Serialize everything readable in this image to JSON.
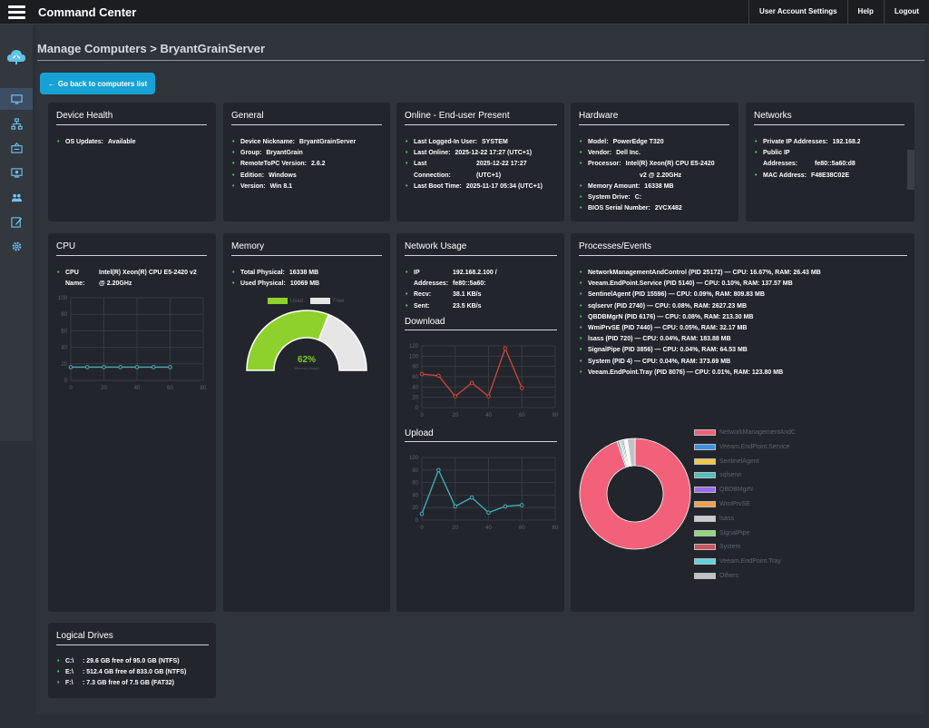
{
  "header": {
    "app_title": "Command Center",
    "links": [
      "User Account Settings",
      "Help",
      "Logout"
    ]
  },
  "sidebar": {
    "icons": [
      "cloud-logo-icon",
      "monitor-icon",
      "network-icon",
      "remote-desktop-icon",
      "screen-icon",
      "users-icon",
      "edit-icon",
      "gear-icon"
    ]
  },
  "page": {
    "title": "Manage Computers > BryantGrainServer",
    "back_button": "Go back to computers list"
  },
  "device_health": {
    "title": "Device Health",
    "rows": [
      {
        "k": "OS Updates:",
        "v": "Available"
      }
    ]
  },
  "general": {
    "title": "General",
    "rows": [
      {
        "k": "Device Nickname:",
        "v": "BryantGrainServer"
      },
      {
        "k": "Group:",
        "v": "BryantGrain"
      },
      {
        "k": "RemoteToPC Version:",
        "v": "2.6.2"
      },
      {
        "k": "Edition:",
        "v": "Windows"
      },
      {
        "k": "Version:",
        "v": "Win 8.1"
      }
    ]
  },
  "online": {
    "title": "Online - End-user Present",
    "rows": [
      {
        "k": "Last Logged-In User:",
        "v": "SYSTEM"
      },
      {
        "k": "Last Online:",
        "v": "2025-12-22 17:27 (UTC+1)"
      },
      {
        "k": "Last",
        "v": "2025-12-22 17:27"
      },
      {
        "k": "Connection:",
        "v": "(UTC+1)"
      },
      {
        "k": "Last Boot Time:",
        "v": "2025-11-17 05:34 (UTC+1)"
      }
    ]
  },
  "hardware": {
    "title": "Hardware",
    "rows": [
      {
        "k": "Model:",
        "v": "PowerEdge T320"
      },
      {
        "k": "Vendor:",
        "v": "Dell Inc."
      },
      {
        "k": "Processor:",
        "v": "Intel(R) Xeon(R) CPU E5-2420"
      },
      {
        "k": "",
        "v": "v2 @ 2.20GHz"
      },
      {
        "k": "Memory Amount:",
        "v": "16338 MB"
      },
      {
        "k": "System Drive:",
        "v": "C:"
      },
      {
        "k": "BIOS Serial Number:",
        "v": "2VCX482"
      }
    ]
  },
  "networks": {
    "title": "Networks",
    "rows": [
      {
        "k": "Private IP Addresses:",
        "v": "192.168.2.100"
      },
      {
        "k": "Public IP",
        "v": ""
      },
      {
        "k": "Addresses:",
        "v": "fe80::5a60:d8"
      },
      {
        "k": "MAC Address:",
        "v": "F48E38C02E"
      }
    ]
  },
  "cpu": {
    "title": "CPU",
    "row1_k": "CPU",
    "row1_v": "Intel(R) Xeon(R) CPU E5-2420 v2",
    "row2_k": "Name:",
    "row2_v": "@ 2.20GHz"
  },
  "memory": {
    "title": "Memory",
    "rows": [
      {
        "k": "Total Physical:",
        "v": "16338 MB"
      },
      {
        "k": "Used Physical:",
        "v": "10069 MB"
      }
    ],
    "legend_used": "Used",
    "legend_free": "Free",
    "gauge_percent": "62%",
    "gauge_label": "Memory Usage",
    "used_fraction": 0.62
  },
  "network_usage": {
    "title": "Network Usage",
    "rows": [
      {
        "k": "IP",
        "v": "192.168.2.100 /"
      },
      {
        "k": "Addresses:",
        "v": "fe80::5a60:"
      },
      {
        "k": "Recv:",
        "v": "38.1  KB/s"
      },
      {
        "k": "Sent:",
        "v": "23.5  KB/s"
      }
    ],
    "download_title": "Download",
    "upload_title": "Upload"
  },
  "processes": {
    "title": "Processes/Events",
    "rows": [
      "NetworkManagementAndControl  (PID 25172) — CPU: 16.67%, RAM: 26.43 MB",
      "Veeam.EndPoint.Service  (PID 5140) — CPU: 0.10%, RAM: 137.57 MB",
      "SentinelAgent  (PID 15596) — CPU: 0.09%, RAM: 809.83 MB",
      "sqlservr  (PID 2740) — CPU: 0.08%, RAM: 2627.23 MB",
      "QBDBMgrN  (PID 6176) — CPU: 0.08%, RAM: 213.30 MB",
      "WmiPrvSE  (PID 7440) — CPU: 0.05%, RAM: 32.17 MB",
      "lsass  (PID 720) — CPU: 0.04%, RAM: 183.88 MB",
      "SignalPipe  (PID 3856) — CPU: 0.04%, RAM: 64.53 MB",
      "System  (PID 4) — CPU: 0.04%, RAM: 373.69 MB",
      "Veeam.EndPoint.Tray  (PID 8076) — CPU: 0.01%, RAM: 123.80 MB"
    ],
    "legend": [
      {
        "label": "NetworkManagementAndC",
        "color": "#f2607a"
      },
      {
        "label": "Veeam.EndPoint.Service",
        "color": "#3d8fdc"
      },
      {
        "label": "SentinelAgent",
        "color": "#f0c64a"
      },
      {
        "label": "sqlservr",
        "color": "#4fc0c0"
      },
      {
        "label": "QBDBMgrN",
        "color": "#9b6cf0"
      },
      {
        "label": "WmiPrvSE",
        "color": "#f2a04a"
      },
      {
        "label": "lsass",
        "color": "#c8cbcf"
      },
      {
        "label": "SignalPipe",
        "color": "#8fd67a"
      },
      {
        "label": "System",
        "color": "#c7545f"
      },
      {
        "label": "Veeam.EndPoint.Tray",
        "color": "#5fd4dc"
      },
      {
        "label": "Others",
        "color": "#c0c3c8"
      }
    ]
  },
  "drives": {
    "title": "Logical Drives",
    "rows": [
      {
        "k": "C:\\",
        "v": ": 29.6 GB free of 95.0 GB (NTFS)"
      },
      {
        "k": "E:\\",
        "v": ": 512.4 GB free of 833.0 GB (NTFS)"
      },
      {
        "k": "F:\\",
        "v": ": 7.3 GB free of 7.5 GB (FAT32)"
      }
    ]
  },
  "chart_data": [
    {
      "type": "line",
      "name": "cpu",
      "x": [
        0,
        10,
        20,
        30,
        40,
        50,
        60
      ],
      "values": [
        16,
        16,
        16,
        16,
        16,
        16,
        16
      ],
      "xlim": [
        0,
        80
      ],
      "ylim": [
        0,
        100
      ],
      "xticks": [
        "0",
        "20",
        "40",
        "60",
        "80"
      ],
      "yticks": [
        "0",
        "20",
        "40",
        "60",
        "80",
        "100"
      ],
      "color": "#4fa8b8"
    },
    {
      "type": "line",
      "name": "download",
      "x": [
        0,
        10,
        20,
        30,
        40,
        50,
        60
      ],
      "values": [
        65,
        62,
        22,
        48,
        22,
        115,
        38
      ],
      "xlim": [
        0,
        80
      ],
      "ylim": [
        0,
        120
      ],
      "xticks": [
        "0",
        "20",
        "40",
        "60",
        "80"
      ],
      "yticks": [
        "0",
        "20",
        "40",
        "60",
        "80",
        "100",
        "120"
      ],
      "color": "#d2463c"
    },
    {
      "type": "line",
      "name": "upload",
      "x": [
        0,
        10,
        20,
        30,
        40,
        50,
        60
      ],
      "values": [
        10,
        80,
        22,
        36,
        12,
        22,
        24
      ],
      "xlim": [
        0,
        80
      ],
      "ylim": [
        0,
        100
      ],
      "xticks": [
        "0",
        "20",
        "40",
        "60",
        "80"
      ],
      "yticks": [
        "0",
        "20",
        "40",
        "60",
        "80",
        "100"
      ],
      "color": "#3fb1bf"
    },
    {
      "type": "pie",
      "name": "processes",
      "labels": [
        "NetworkManagementAndC",
        "Veeam.EndPoint.Service",
        "SentinelAgent",
        "sqlservr",
        "QBDBMgrN",
        "WmiPrvSE",
        "lsass",
        "SignalPipe",
        "System",
        "Veeam.EndPoint.Tray",
        "Others"
      ],
      "values": [
        16.67,
        0.1,
        0.09,
        0.08,
        0.08,
        0.05,
        0.04,
        0.04,
        0.04,
        0.01,
        0.4
      ]
    }
  ]
}
